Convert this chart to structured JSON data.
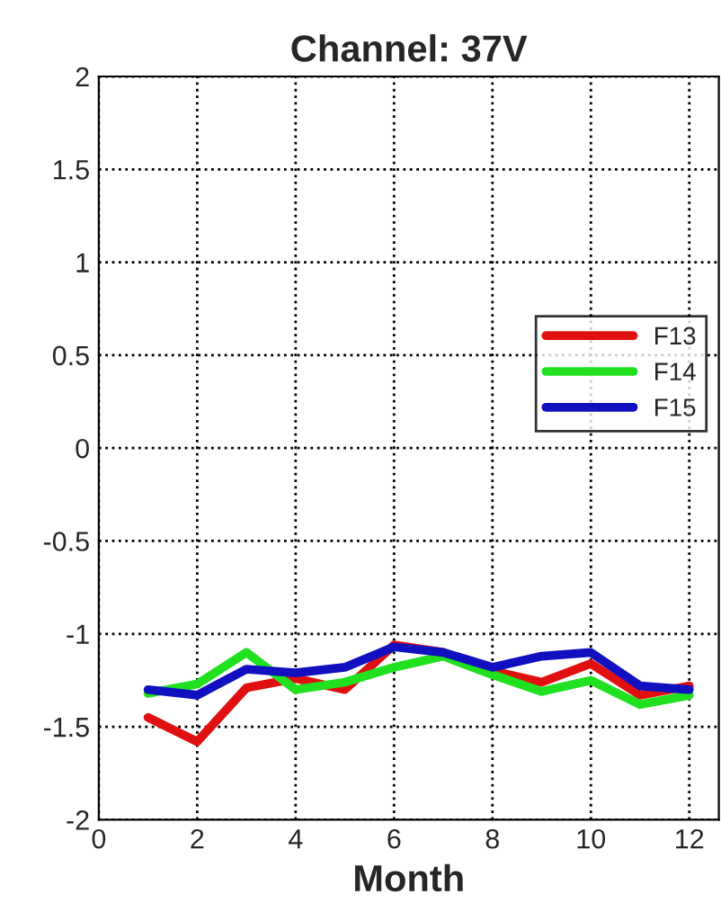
{
  "chart_data": {
    "type": "line",
    "title": "Channel: 37V",
    "xlabel": "Month",
    "x": [
      1,
      2,
      3,
      4,
      5,
      6,
      7,
      8,
      9,
      10,
      11,
      12
    ],
    "series": [
      {
        "name": "F13",
        "color": "#e01010",
        "values": [
          -1.45,
          -1.58,
          -1.29,
          -1.24,
          -1.3,
          -1.06,
          -1.1,
          -1.2,
          -1.26,
          -1.16,
          -1.33,
          -1.28
        ]
      },
      {
        "name": "F14",
        "color": "#20e020",
        "values": [
          -1.32,
          -1.27,
          -1.1,
          -1.3,
          -1.26,
          -1.18,
          -1.12,
          -1.22,
          -1.31,
          -1.25,
          -1.38,
          -1.33
        ]
      },
      {
        "name": "F15",
        "color": "#1010c0",
        "values": [
          -1.3,
          -1.33,
          -1.19,
          -1.21,
          -1.18,
          -1.07,
          -1.1,
          -1.18,
          -1.12,
          -1.1,
          -1.28,
          -1.3
        ]
      }
    ],
    "xlim": [
      0,
      12.6
    ],
    "xticks": [
      0,
      2,
      4,
      6,
      8,
      10,
      12
    ],
    "ylim": [
      -2,
      2
    ],
    "yticks": [
      -2,
      -1.5,
      -1,
      -0.5,
      0,
      0.5,
      1,
      1.5,
      2
    ],
    "grid": true,
    "legend": "right",
    "marker": "none",
    "line_style": "solid"
  }
}
